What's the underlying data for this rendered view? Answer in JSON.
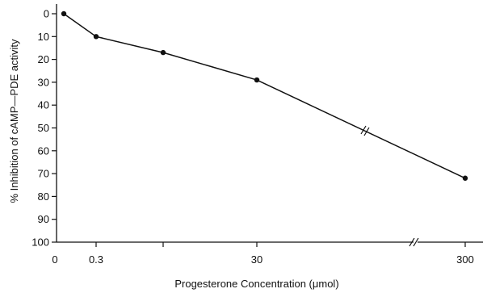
{
  "chart_data": {
    "type": "line",
    "title": "",
    "xlabel": "Progesterone Concentration (μmol)",
    "ylabel": "% Inhibition of cAMP—PDE activity",
    "x_axis": {
      "ticks": [
        "0",
        "0.3",
        "30",
        "300"
      ],
      "scale": "broken log-like, axis break between 30 and 300"
    },
    "y_axis": {
      "ticks": [
        0,
        10,
        20,
        30,
        40,
        50,
        60,
        70,
        80,
        90,
        100
      ],
      "ylim": [
        0,
        100
      ],
      "inverted": true
    },
    "grid": false,
    "series": [
      {
        "name": "",
        "points": [
          {
            "x": "0",
            "y": 0
          },
          {
            "x": "0.3",
            "y": 10
          },
          {
            "x": "3",
            "y": 17
          },
          {
            "x": "30",
            "y": 29
          },
          {
            "x": "300",
            "y": 72
          }
        ]
      }
    ],
    "colors": {
      "line": "#111111",
      "axis": "#111111",
      "background": "#ffffff"
    }
  }
}
